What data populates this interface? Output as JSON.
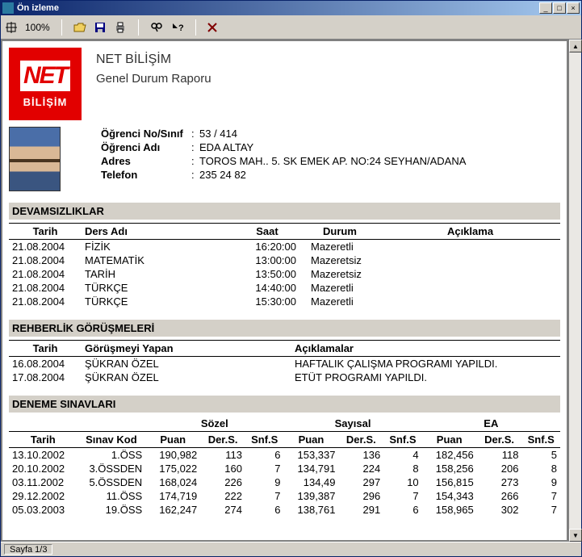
{
  "window": {
    "title": "Ön izleme"
  },
  "toolbar": {
    "zoom": "100%"
  },
  "header": {
    "company": "NET BİLİŞİM",
    "report": "Genel Durum Raporu"
  },
  "logo": {
    "top": "NET",
    "bottom": "BİLİŞİM"
  },
  "student": {
    "no_label": "Öğrenci No/Sınıf",
    "no_value": "53 / 414",
    "name_label": "Öğrenci Adı",
    "name_value": "EDA ALTAY",
    "addr_label": "Adres",
    "addr_value": "TOROS MAH.. 5. SK EMEK AP. NO:24  SEYHAN/ADANA",
    "tel_label": "Telefon",
    "tel_value": "235 24 82"
  },
  "abs": {
    "title": "DEVAMSIZLIKLAR",
    "cols": {
      "tarih": "Tarih",
      "ders": "Ders Adı",
      "saat": "Saat",
      "durum": "Durum",
      "aciklama": "Açıklama"
    },
    "rows": [
      {
        "tarih": "21.08.2004",
        "ders": "FİZİK",
        "saat": "16:20:00",
        "durum": "Mazeretli"
      },
      {
        "tarih": "21.08.2004",
        "ders": "MATEMATİK",
        "saat": "13:00:00",
        "durum": "Mazeretsiz"
      },
      {
        "tarih": "21.08.2004",
        "ders": "TARİH",
        "saat": "13:50:00",
        "durum": "Mazeretsiz"
      },
      {
        "tarih": "21.08.2004",
        "ders": "TÜRKÇE",
        "saat": "14:40:00",
        "durum": "Mazeretli"
      },
      {
        "tarih": "21.08.2004",
        "ders": "TÜRKÇE",
        "saat": "15:30:00",
        "durum": "Mazeretli"
      }
    ]
  },
  "guid": {
    "title": "REHBERLİK GÖRÜŞMELERİ",
    "cols": {
      "tarih": "Tarih",
      "yapan": "Görüşmeyi Yapan",
      "aciklama": "Açıklamalar"
    },
    "rows": [
      {
        "tarih": "16.08.2004",
        "yapan": "ŞÜKRAN ÖZEL",
        "aciklama": "HAFTALIK ÇALIŞMA PROGRAMI YAPILDI."
      },
      {
        "tarih": "17.08.2004",
        "yapan": "ŞÜKRAN ÖZEL",
        "aciklama": "ETÜT PROGRAMI YAPILDI."
      }
    ]
  },
  "exam": {
    "title": "DENEME SINAVLARI",
    "groups": {
      "sozel": "Sözel",
      "sayisal": "Sayısal",
      "ea": "EA"
    },
    "cols": {
      "tarih": "Tarih",
      "kod": "Sınav Kod",
      "puan": "Puan",
      "ders": "Der.S.",
      "snf": "Snf.S"
    },
    "rows": [
      {
        "tarih": "13.10.2002",
        "kod": "1.ÖSS",
        "sp": "190,982",
        "sd": "113",
        "ss": "6",
        "yp": "153,337",
        "yd": "136",
        "ys": "4",
        "ep": "182,456",
        "ed": "118",
        "es": "5"
      },
      {
        "tarih": "20.10.2002",
        "kod": "3.ÖSSDEN",
        "sp": "175,022",
        "sd": "160",
        "ss": "7",
        "yp": "134,791",
        "yd": "224",
        "ys": "8",
        "ep": "158,256",
        "ed": "206",
        "es": "8"
      },
      {
        "tarih": "03.11.2002",
        "kod": "5.ÖSSDEN",
        "sp": "168,024",
        "sd": "226",
        "ss": "9",
        "yp": "134,49",
        "yd": "297",
        "ys": "10",
        "ep": "156,815",
        "ed": "273",
        "es": "9"
      },
      {
        "tarih": "29.12.2002",
        "kod": "11.ÖSS",
        "sp": "174,719",
        "sd": "222",
        "ss": "7",
        "yp": "139,387",
        "yd": "296",
        "ys": "7",
        "ep": "154,343",
        "ed": "266",
        "es": "7"
      },
      {
        "tarih": "05.03.2003",
        "kod": "19.ÖSS",
        "sp": "162,247",
        "sd": "274",
        "ss": "6",
        "yp": "138,761",
        "yd": "291",
        "ys": "6",
        "ep": "158,965",
        "ed": "302",
        "es": "7"
      }
    ]
  },
  "status": {
    "page": "Sayfa 1/3"
  }
}
